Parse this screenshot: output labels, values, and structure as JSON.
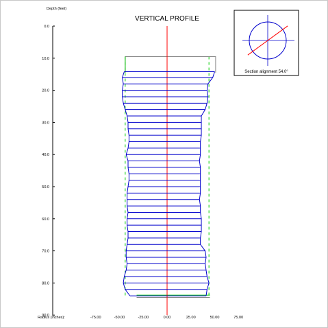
{
  "chart_data": {
    "type": "line",
    "title": "VERTICAL PROFILE",
    "ylabel": "Depth (feet)",
    "xlabel": "Radius (inches):",
    "ylim": [
      0,
      90
    ],
    "xlim": [
      -75,
      75
    ],
    "y_ticks": [
      "0.0",
      "10.0",
      "20.0",
      "30.0",
      "40.0",
      "50.0",
      "60.0",
      "70.0",
      "80.0",
      "90.0"
    ],
    "x_ticks": [
      "-75.00",
      "-50.00",
      "-25.00",
      "0.00",
      "25.00",
      "50.00",
      "75.00"
    ],
    "inset": {
      "label": "Section alignment 54.0°",
      "angle_deg": 54.0
    },
    "colors": {
      "profile": "#0000cc",
      "centerline": "#ff0000",
      "design": "#00cc00",
      "casing": "#888888"
    },
    "design_radius": 44,
    "casing": {
      "top_depth": 9.5,
      "bottom_depth": 84.5,
      "left_radius_top": -44,
      "right_radius": 51,
      "bottom_left_radius": -32,
      "bottom_right_radius": 45
    },
    "profile": {
      "depth": [
        14.2,
        16.0,
        18.0,
        20.0,
        22.0,
        24.0,
        26.0,
        28.0,
        30.0,
        32.0,
        34.0,
        36.0,
        38.0,
        40.0,
        42.0,
        44.0,
        46.0,
        48.0,
        50.0,
        52.0,
        54.0,
        56.0,
        58.0,
        60.0,
        62.0,
        64.0,
        66.0,
        68.0,
        70.0,
        72.0,
        74.0,
        76.0,
        78.0,
        80.0,
        82.0,
        84.0
      ],
      "left": [
        -45,
        -47,
        -46,
        -47,
        -47,
        -46,
        -44,
        -42,
        -41,
        -41,
        -40,
        -40,
        -41,
        -43,
        -41,
        -41,
        -40,
        -40,
        -41,
        -42,
        -42,
        -42,
        -41,
        -42,
        -42,
        -41,
        -41,
        -42,
        -43,
        -43,
        -42,
        -43,
        -45,
        -46,
        -44,
        -39
      ],
      "right": [
        50,
        48,
        43,
        42,
        43,
        42,
        40,
        36,
        36,
        36,
        36,
        35,
        35,
        35,
        34,
        35,
        35,
        35,
        35,
        35,
        34,
        35,
        35,
        36,
        36,
        36,
        35,
        35,
        40,
        41,
        40,
        41,
        42,
        44,
        42,
        41
      ]
    }
  }
}
